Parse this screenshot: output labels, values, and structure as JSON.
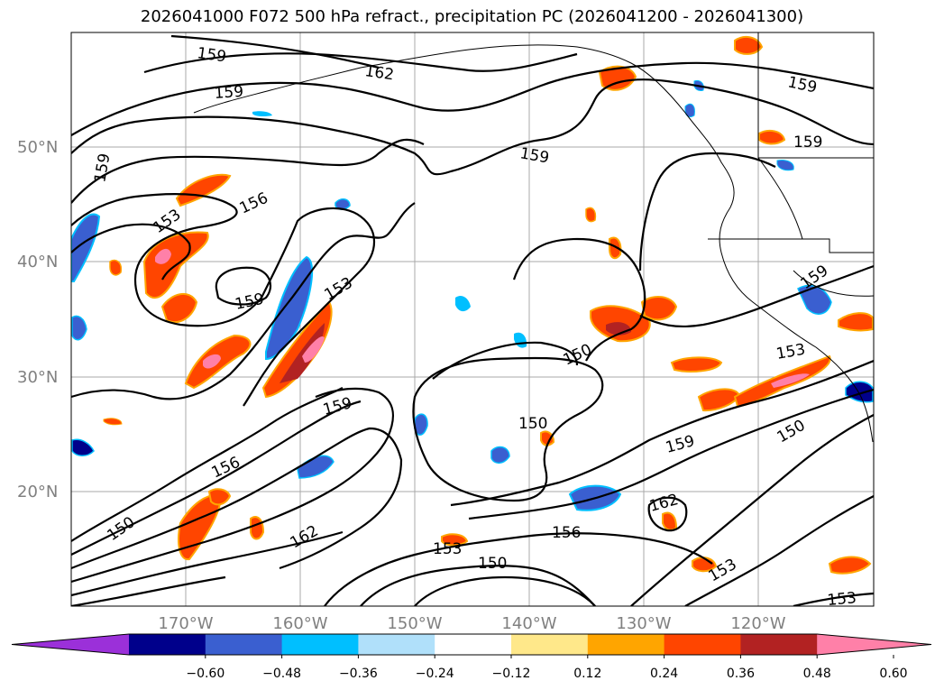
{
  "title": "2026041000 F072 500 hPa refract., precipitation PC (2026041200 - 2026041300)",
  "lat_labels": [
    "50°N",
    "40°N",
    "30°N",
    "20°N"
  ],
  "lon_labels": [
    "170°W",
    "160°W",
    "150°W",
    "140°W",
    "130°W",
    "120°W"
  ],
  "contour_labels": [
    "159",
    "162",
    "159",
    "159",
    "153",
    "156",
    "159",
    "159",
    "153",
    "159",
    "159",
    "153",
    "159",
    "150",
    "150",
    "159",
    "156",
    "159",
    "150",
    "162",
    "156",
    "153",
    "150",
    "162",
    "153",
    "150",
    "153"
  ],
  "colorbar": {
    "ticks": [
      "−0.60",
      "−0.48",
      "−0.36",
      "−0.24",
      "−0.12",
      "0.12",
      "0.24",
      "0.36",
      "0.48",
      "0.60"
    ],
    "colors": [
      "#9b30d9",
      "#00008b",
      "#3a5fd0",
      "#00bfff",
      "#b0e0fa",
      "#ffffff",
      "#ffe88a",
      "#ffa500",
      "#ff4500",
      "#b22222",
      "#ff80a8"
    ]
  }
}
